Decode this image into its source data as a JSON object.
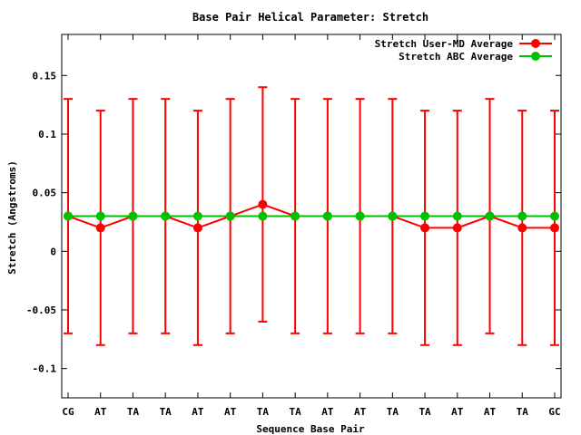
{
  "chart_data": {
    "type": "line",
    "title": "Base Pair Helical Parameter: Stretch",
    "xlabel": "Sequence Base Pair",
    "ylabel": "Stretch (Angstroms)",
    "categories": [
      "CG",
      "AT",
      "TA",
      "TA",
      "AT",
      "AT",
      "TA",
      "TA",
      "AT",
      "AT",
      "TA",
      "TA",
      "AT",
      "AT",
      "TA",
      "GC"
    ],
    "ylim": [
      -0.125,
      0.185
    ],
    "yticks": [
      0.15,
      0.1,
      0.05,
      0,
      -0.05,
      -0.1
    ],
    "ytick_labels": [
      "0.15",
      "0.1",
      "0.05",
      "0",
      "-0.05",
      "-0.1"
    ],
    "grid": false,
    "legend_position": "top-right",
    "series": [
      {
        "name": "Stretch User-MD Average",
        "color": "#ff0000",
        "values": [
          0.03,
          0.02,
          0.03,
          0.03,
          0.02,
          0.03,
          0.04,
          0.03,
          0.03,
          0.03,
          0.03,
          0.02,
          0.02,
          0.03,
          0.02,
          0.02
        ],
        "error_low": [
          -0.07,
          -0.08,
          -0.07,
          -0.07,
          -0.08,
          -0.07,
          -0.06,
          -0.07,
          -0.07,
          -0.07,
          -0.07,
          -0.08,
          -0.08,
          -0.07,
          -0.08,
          -0.08
        ],
        "error_high": [
          0.13,
          0.12,
          0.13,
          0.13,
          0.12,
          0.13,
          0.14,
          0.13,
          0.13,
          0.13,
          0.13,
          0.12,
          0.12,
          0.13,
          0.12,
          0.12
        ]
      },
      {
        "name": "Stretch ABC Average",
        "color": "#00c000",
        "values": [
          0.03,
          0.03,
          0.03,
          0.03,
          0.03,
          0.03,
          0.03,
          0.03,
          0.03,
          0.03,
          0.03,
          0.03,
          0.03,
          0.03,
          0.03,
          0.03
        ]
      }
    ]
  }
}
